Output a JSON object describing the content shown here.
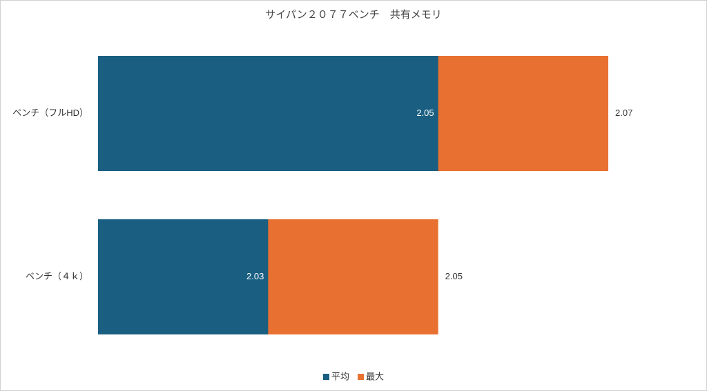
{
  "chart_data": {
    "type": "bar",
    "orientation": "horizontal",
    "title": "サイパン２０７７ベンチ　共有メモリ",
    "categories": [
      "ベンチ（フルHD）",
      "ベンチ（４ｋ）"
    ],
    "series": [
      {
        "name": "平均",
        "color": "#1a5f82",
        "values": [
          2.05,
          2.03
        ]
      },
      {
        "name": "最大",
        "color": "#e87132",
        "values": [
          2.07,
          2.05
        ]
      }
    ],
    "xlim": [
      2.01,
      2.07
    ],
    "legend": "bottom"
  }
}
